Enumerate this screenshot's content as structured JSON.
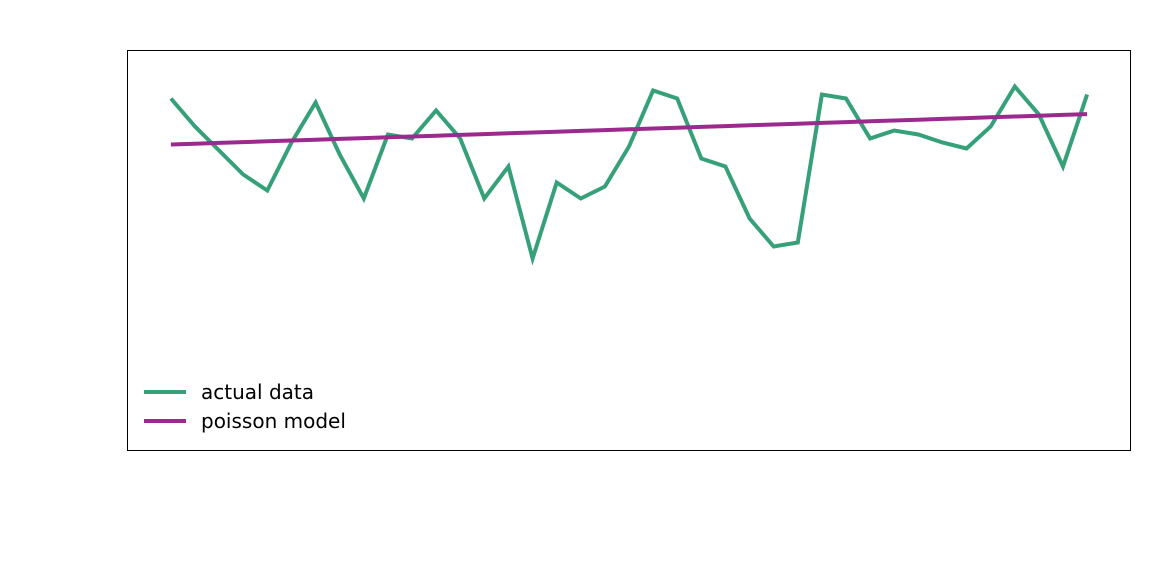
{
  "chart_data": {
    "type": "line",
    "title": "",
    "xlabel": "",
    "ylabel": "",
    "xlim": [
      -1.8,
      39.8
    ],
    "ylim": [
      0,
      100
    ],
    "grid": false,
    "legend_position": "bottom-left",
    "x": [
      0,
      1,
      2,
      3,
      4,
      5,
      6,
      7,
      8,
      9,
      10,
      11,
      12,
      13,
      14,
      15,
      16,
      17,
      18,
      19,
      20,
      21,
      22,
      23,
      24,
      25,
      26,
      27,
      28,
      29,
      30,
      31,
      32,
      33,
      34,
      35,
      36,
      37,
      38
    ],
    "series": [
      {
        "name": "actual data",
        "color": "#36a079",
        "values": [
          88,
          81,
          75,
          69,
          65,
          77,
          87,
          74,
          63,
          79,
          78,
          85,
          78,
          63,
          71,
          48,
          67,
          63,
          66,
          76,
          90,
          88,
          73,
          71,
          58,
          51,
          52,
          89,
          88,
          78,
          80,
          79,
          77,
          75.5,
          81,
          91,
          84,
          71,
          89
        ]
      },
      {
        "name": "poisson model",
        "color": "#9b2a8e",
        "values": [
          76.5,
          76.7,
          76.9,
          77.1,
          77.3,
          77.5,
          77.7,
          77.9,
          78.1,
          78.3,
          78.5,
          78.7,
          78.9,
          79.1,
          79.3,
          79.5,
          79.7,
          79.9,
          80.1,
          80.3,
          80.5,
          80.7,
          80.9,
          81.1,
          81.3,
          81.5,
          81.7,
          81.9,
          82.1,
          82.3,
          82.5,
          82.7,
          82.9,
          83.1,
          83.3,
          83.5,
          83.7,
          83.9,
          84.1
        ]
      }
    ]
  },
  "legend": {
    "items": [
      {
        "label": "actual data",
        "color": "#36a079"
      },
      {
        "label": "poisson model",
        "color": "#9b2a8e"
      }
    ]
  }
}
